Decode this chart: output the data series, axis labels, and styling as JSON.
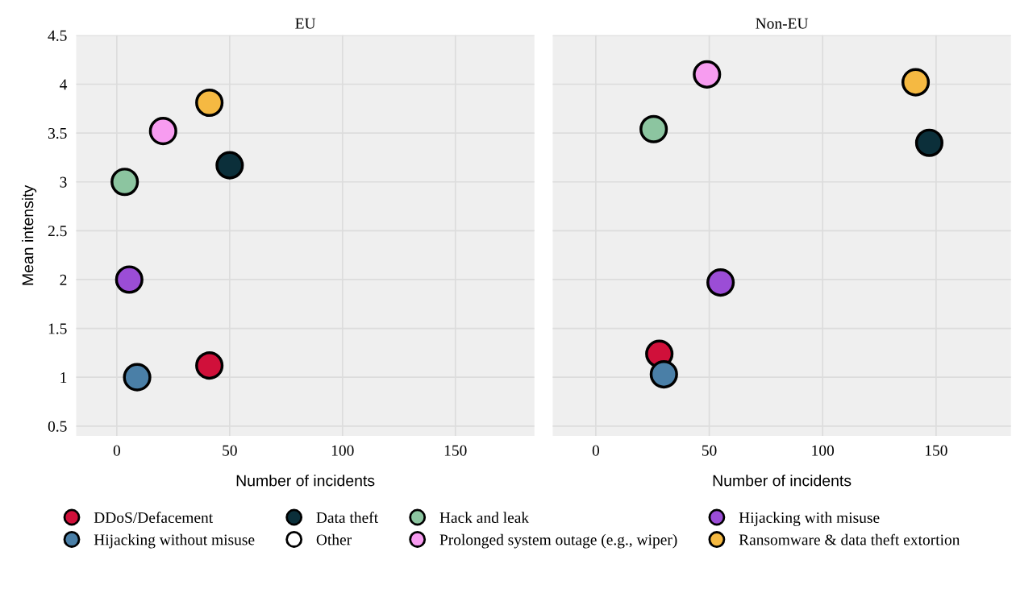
{
  "chart_data": [
    {
      "type": "scatter",
      "title": "EU",
      "xlabel": "Number of incidents",
      "ylabel": "Mean intensity",
      "xlim": [
        -18,
        185
      ],
      "ylim": [
        0.4,
        4.5
      ],
      "xticks": [
        0,
        50,
        100,
        150
      ],
      "yticks": [
        0.5,
        1,
        1.5,
        2,
        2.5,
        3,
        3.5,
        4,
        4.5
      ],
      "grid": true,
      "marker": "circle",
      "legend": "bottom",
      "series": [
        {
          "name": "DDoS/Defacement",
          "color": "#d0103a",
          "x": [
            41
          ],
          "values": [
            1.12
          ]
        },
        {
          "name": "Data theft",
          "color": "#0b2f3a",
          "x": [
            50
          ],
          "values": [
            3.17
          ]
        },
        {
          "name": "Hack and leak",
          "color": "#8cc5a0",
          "x": [
            3.5
          ],
          "values": [
            3.0
          ]
        },
        {
          "name": "Hijacking with misuse",
          "color": "#9b4dd6",
          "x": [
            5.5
          ],
          "values": [
            2.0
          ]
        },
        {
          "name": "Hijacking without misuse",
          "color": "#4a7fa7",
          "x": [
            9
          ],
          "values": [
            1.0
          ]
        },
        {
          "name": "Other",
          "color": "#ffffff"
        },
        {
          "name": "Prolonged system outage (e.g., wiper)",
          "color": "#f79cf0",
          "x": [
            20.5
          ],
          "values": [
            3.52
          ]
        },
        {
          "name": "Ransomware & data theft extortion",
          "color": "#f5b942",
          "x": [
            41
          ],
          "values": [
            3.81
          ]
        }
      ]
    },
    {
      "type": "scatter",
      "title": "Non-EU",
      "xlabel": "Number of incidents",
      "xlim": [
        -19,
        183
      ],
      "ylim": [
        0.4,
        4.5
      ],
      "xticks": [
        0,
        50,
        100,
        150
      ],
      "yticks": [
        0.5,
        1,
        1.5,
        2,
        2.5,
        3,
        3.5,
        4,
        4.5
      ],
      "grid": true,
      "marker": "circle",
      "tick_labels": "x",
      "series": [
        {
          "color": "#d0103a",
          "x": [
            28
          ],
          "values": [
            1.24
          ]
        },
        {
          "color": "#0b2f3a",
          "x": [
            147
          ],
          "values": [
            3.4
          ]
        },
        {
          "color": "#8cc5a0",
          "x": [
            25.5
          ],
          "values": [
            3.54
          ]
        },
        {
          "color": "#9b4dd6",
          "x": [
            55
          ],
          "values": [
            1.97
          ]
        },
        {
          "color": "#4a7fa7",
          "x": [
            30
          ],
          "values": [
            1.03
          ]
        },
        {
          "color": "#f79cf0",
          "x": [
            49
          ],
          "values": [
            4.1
          ]
        },
        {
          "color": "#f5b942",
          "x": [
            141
          ],
          "values": [
            4.02
          ]
        }
      ]
    }
  ]
}
